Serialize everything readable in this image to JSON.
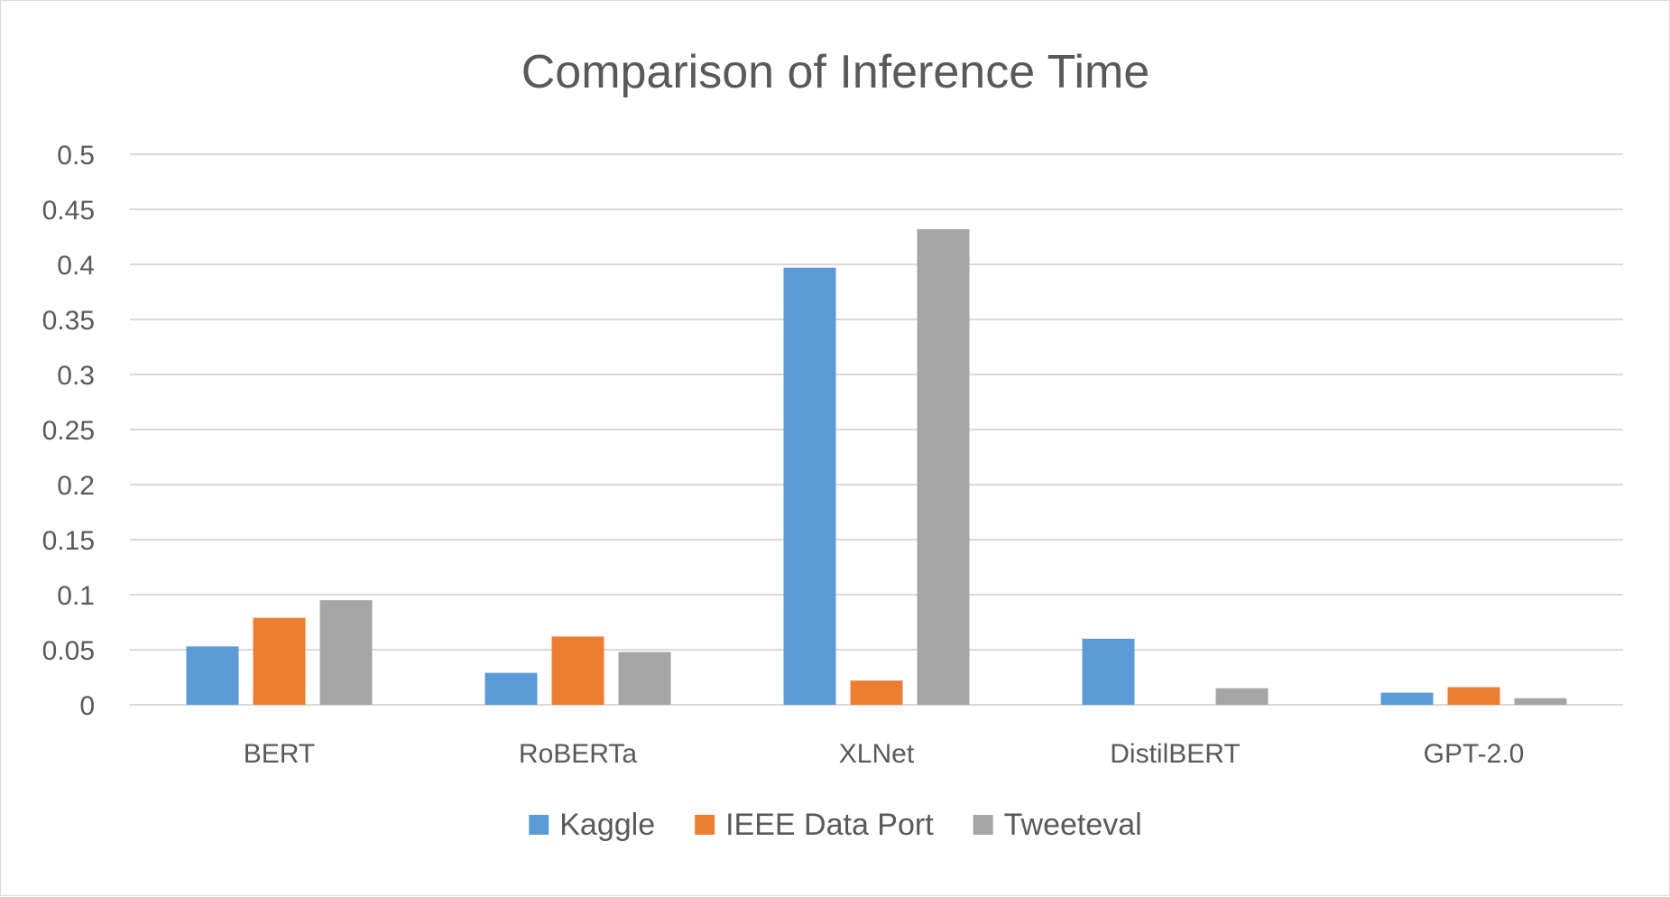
{
  "chart_data": {
    "type": "bar",
    "title": "Comparison of Inference Time",
    "xlabel": "",
    "ylabel": "",
    "categories": [
      "BERT",
      "RoBERTa",
      "XLNet",
      "DistilBERT",
      "GPT-2.0"
    ],
    "series": [
      {
        "name": "Kaggle",
        "color": "#5b9bd5",
        "values": [
          0.053,
          0.029,
          0.397,
          0.06,
          0.011
        ]
      },
      {
        "name": "IEEE Data Port",
        "color": "#ed7d31",
        "values": [
          0.079,
          0.062,
          0.022,
          0.0,
          0.016
        ]
      },
      {
        "name": "Tweeteval",
        "color": "#a5a5a5",
        "values": [
          0.095,
          0.048,
          0.432,
          0.015,
          0.006
        ]
      }
    ],
    "ylim": [
      0,
      0.5
    ],
    "yticks": [
      "0",
      "0.05",
      "0.1",
      "0.15",
      "0.2",
      "0.25",
      "0.3",
      "0.35",
      "0.4",
      "0.45",
      "0.5"
    ],
    "grid": true,
    "legend_position": "bottom",
    "gridline_color": "#d9d9d9"
  }
}
